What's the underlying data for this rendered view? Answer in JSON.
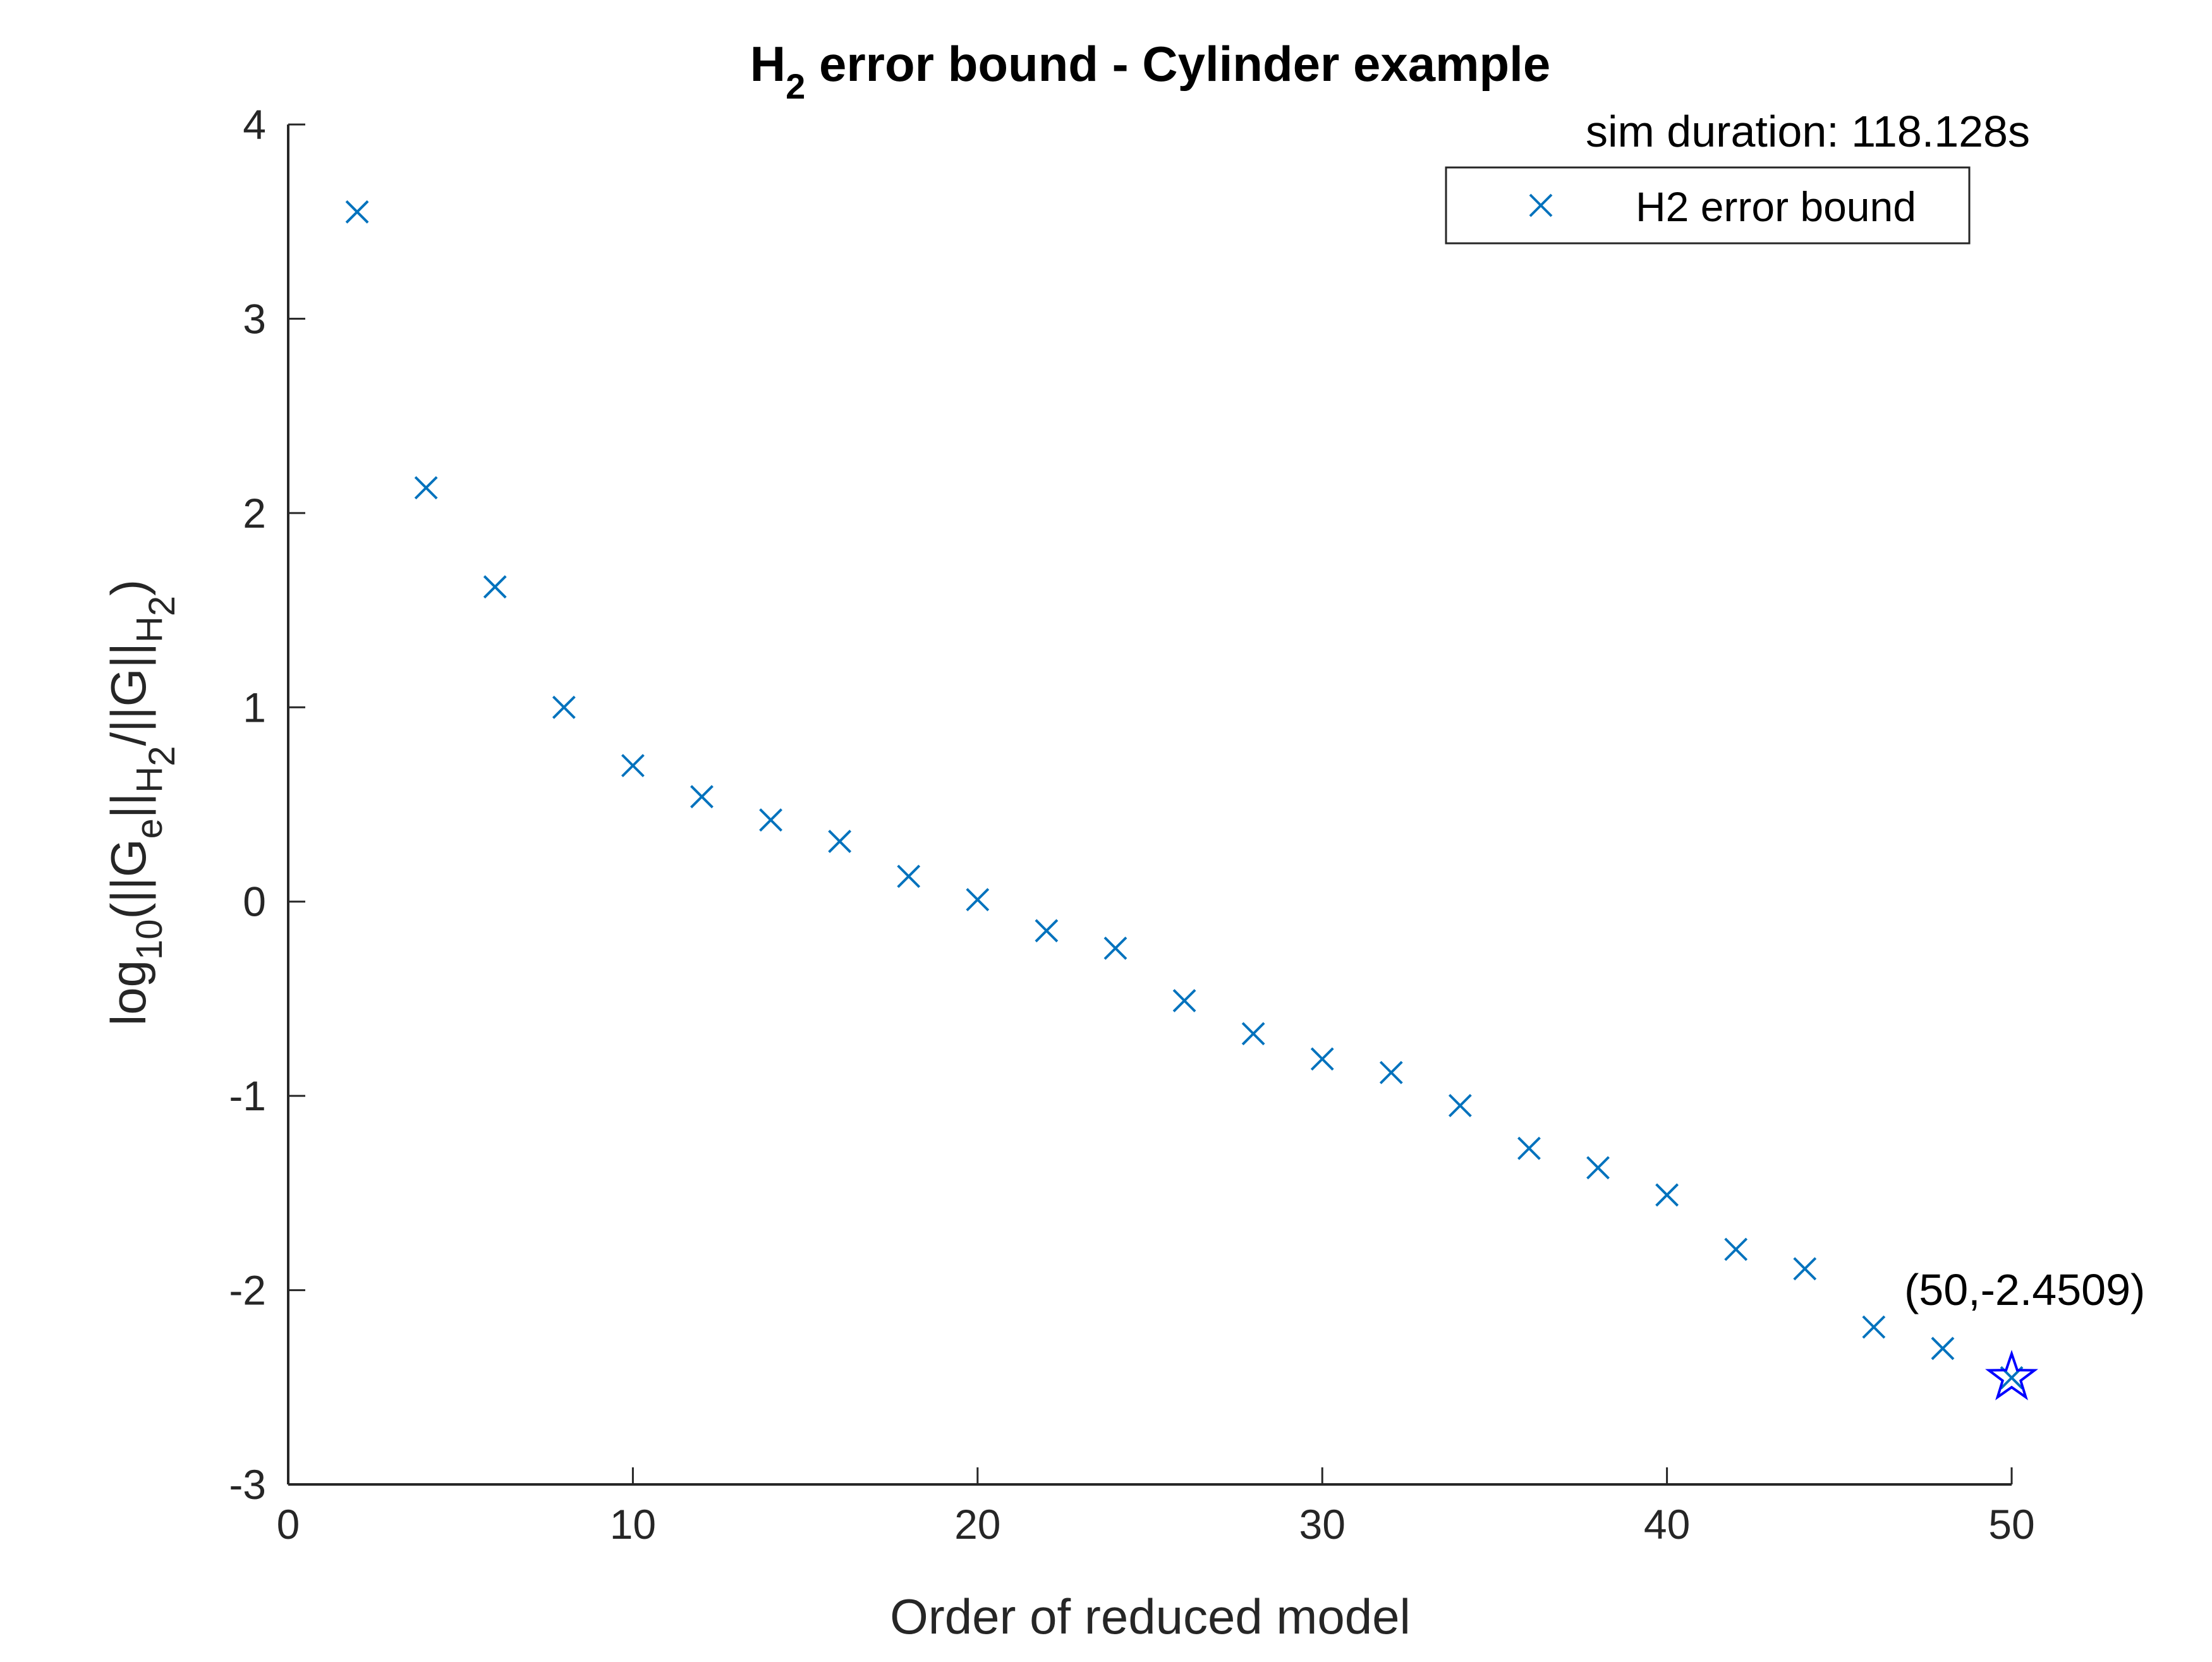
{
  "chart_data": {
    "type": "scatter",
    "title": {
      "main": "H",
      "sub": "2",
      "rest": " error bound - Cylinder example"
    },
    "subtitle": "sim duration: 118.128s",
    "xlabel": "Order of reduced model",
    "ylabel": {
      "parts": [
        {
          "text": "log",
          "shift": 0
        },
        {
          "text": "10",
          "shift": 1
        },
        {
          "text": "(||G",
          "shift": 0
        },
        {
          "text": "e",
          "shift": 1
        },
        {
          "text": "||",
          "shift": 0
        },
        {
          "text": "H",
          "shift": 1
        },
        {
          "text": "2",
          "shift": 2
        },
        {
          "text": "/||G||",
          "shift": 0
        },
        {
          "text": "H",
          "shift": 1
        },
        {
          "text": "2",
          "shift": 2
        },
        {
          "text": ")",
          "shift": 0
        }
      ]
    },
    "xlim": [
      0,
      50
    ],
    "ylim": [
      -3,
      4
    ],
    "xticks": [
      0,
      10,
      20,
      30,
      40,
      50
    ],
    "yticks": [
      -3,
      -2,
      -1,
      0,
      1,
      2,
      3,
      4
    ],
    "grid": false,
    "legend": {
      "placement": "top-right",
      "entries": [
        "H2 error bound"
      ]
    },
    "series": [
      {
        "name": "H2 error bound",
        "marker": "x",
        "color": "#0072BD",
        "x": [
          2,
          4,
          6,
          8,
          10,
          12,
          14,
          16,
          18,
          20,
          22,
          24,
          26,
          28,
          30,
          32,
          34,
          36,
          38,
          40,
          42,
          44,
          46,
          48,
          50
        ],
        "y": [
          3.55,
          2.13,
          1.62,
          1.0,
          0.7,
          0.54,
          0.42,
          0.31,
          0.13,
          0.01,
          -0.15,
          -0.24,
          -0.51,
          -0.68,
          -0.81,
          -0.88,
          -1.05,
          -1.27,
          -1.37,
          -1.51,
          -1.79,
          -1.89,
          -2.19,
          -2.3,
          -2.4509
        ]
      }
    ],
    "highlight": {
      "x": 50,
      "y": -2.4509,
      "marker": "pentagram",
      "color": "#0000FF",
      "label": "(50,-2.4509)"
    }
  }
}
